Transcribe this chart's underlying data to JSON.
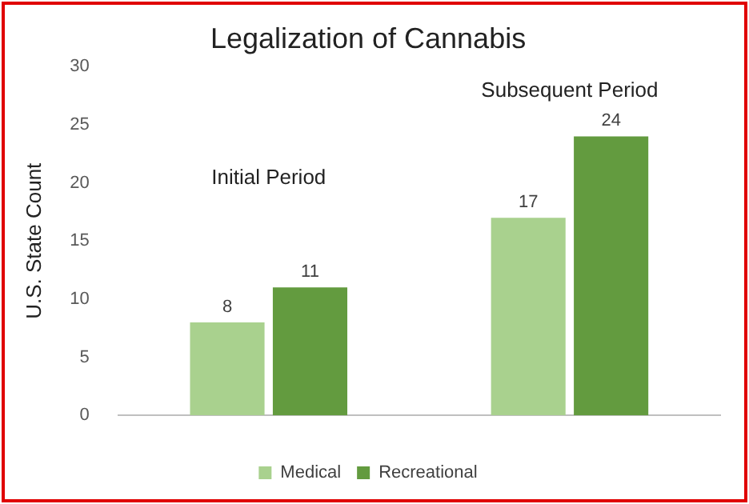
{
  "chart_data": {
    "type": "bar",
    "title": "Legalization of Cannabis",
    "ylabel": "U.S. State Count",
    "categories": [
      null,
      null
    ],
    "series": [
      {
        "name": "Medical",
        "color": "#a9d18e",
        "values": [
          8,
          17
        ]
      },
      {
        "name": "Recreational",
        "color": "#639b3f",
        "values": [
          11,
          24
        ]
      }
    ],
    "ylim": [
      0,
      30
    ],
    "yticks": [
      0,
      5,
      10,
      15,
      20,
      25,
      30
    ],
    "grid": false,
    "legend": "bottom",
    "data_labels": true,
    "annotations": [
      "Initial Period",
      "Subsequent Period"
    ]
  }
}
